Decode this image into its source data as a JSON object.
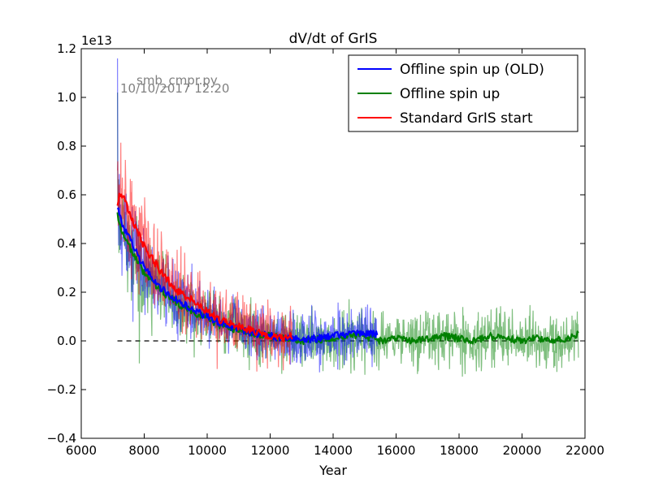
{
  "chart_data": {
    "type": "line",
    "title": "dV/dt of GrIS",
    "xlabel": "Year",
    "ylabel": "",
    "y_scale_label": "1e13",
    "annotation": {
      "script": "smb_cmpr.py",
      "timestamp": "10/10/2017 12:20",
      "color": "#808080"
    },
    "xlim": [
      6000,
      22000
    ],
    "ylim": [
      -0.4,
      1.2
    ],
    "xticks": [
      6000,
      8000,
      10000,
      12000,
      14000,
      16000,
      18000,
      20000,
      22000
    ],
    "xtick_labels": [
      "6000",
      "8000",
      "10000",
      "12000",
      "14000",
      "16000",
      "18000",
      "20000",
      "22000"
    ],
    "yticks": [
      -0.4,
      -0.2,
      0.0,
      0.2,
      0.4,
      0.6,
      0.8,
      1.0,
      1.2
    ],
    "ytick_labels": [
      "−0.4",
      "−0.2",
      "0.0",
      "0.2",
      "0.4",
      "0.6",
      "0.8",
      "1.0",
      "1.2"
    ],
    "grid": false,
    "legend_position": "top-right",
    "zero_line": {
      "y": 0.0,
      "x_range": [
        7150,
        21800
      ],
      "style": "dashed",
      "color": "#000000"
    },
    "series": [
      {
        "name": "Offline spin up (OLD)",
        "color": "#0000ff",
        "x_range": [
          7150,
          15400
        ],
        "raw_noise": 0.085,
        "initial_spike": 1.16,
        "smoothed": {
          "x": [
            7150,
            7300,
            7600,
            8000,
            8500,
            9000,
            9500,
            10000,
            10500,
            11000,
            11500,
            12000,
            12500,
            13000,
            13500,
            14000,
            14500,
            15000,
            15400
          ],
          "y": [
            0.55,
            0.48,
            0.4,
            0.3,
            0.22,
            0.17,
            0.13,
            0.1,
            0.07,
            0.05,
            0.03,
            0.02,
            0.01,
            0.005,
            0.01,
            0.02,
            0.03,
            0.03,
            0.03
          ]
        }
      },
      {
        "name": "Offline spin up",
        "color": "#008000",
        "x_range": [
          7150,
          21800
        ],
        "raw_noise": 0.09,
        "initial_spike": 1.02,
        "smoothed": {
          "x": [
            7150,
            7300,
            7600,
            8000,
            8500,
            9000,
            9500,
            10000,
            10500,
            11000,
            11500,
            12000,
            12500,
            13000,
            14000,
            14500,
            15000,
            15500,
            16000,
            16500,
            17000,
            17500,
            18000,
            18500,
            19000,
            19500,
            20000,
            20500,
            21000,
            21500,
            21800
          ],
          "y": [
            0.52,
            0.45,
            0.37,
            0.28,
            0.21,
            0.16,
            0.12,
            0.09,
            0.06,
            0.045,
            0.03,
            0.02,
            0.01,
            0.0,
            0.01,
            0.02,
            0.02,
            0.0,
            0.01,
            0.0,
            0.01,
            0.02,
            0.01,
            0.0,
            0.02,
            0.01,
            0.0,
            0.01,
            0.0,
            0.01,
            0.03
          ]
        }
      },
      {
        "name": "Standard GrIS start",
        "color": "#ff0000",
        "x_range": [
          7150,
          12700
        ],
        "raw_noise": 0.1,
        "initial_spike": 0.7,
        "smoothed": {
          "x": [
            7150,
            7250,
            7400,
            7600,
            8000,
            8500,
            9000,
            9500,
            10000,
            10500,
            11000,
            11500,
            12000,
            12400,
            12700
          ],
          "y": [
            0.56,
            0.61,
            0.57,
            0.5,
            0.39,
            0.29,
            0.21,
            0.17,
            0.12,
            0.08,
            0.06,
            0.04,
            0.02,
            0.01,
            0.02
          ]
        }
      }
    ]
  }
}
